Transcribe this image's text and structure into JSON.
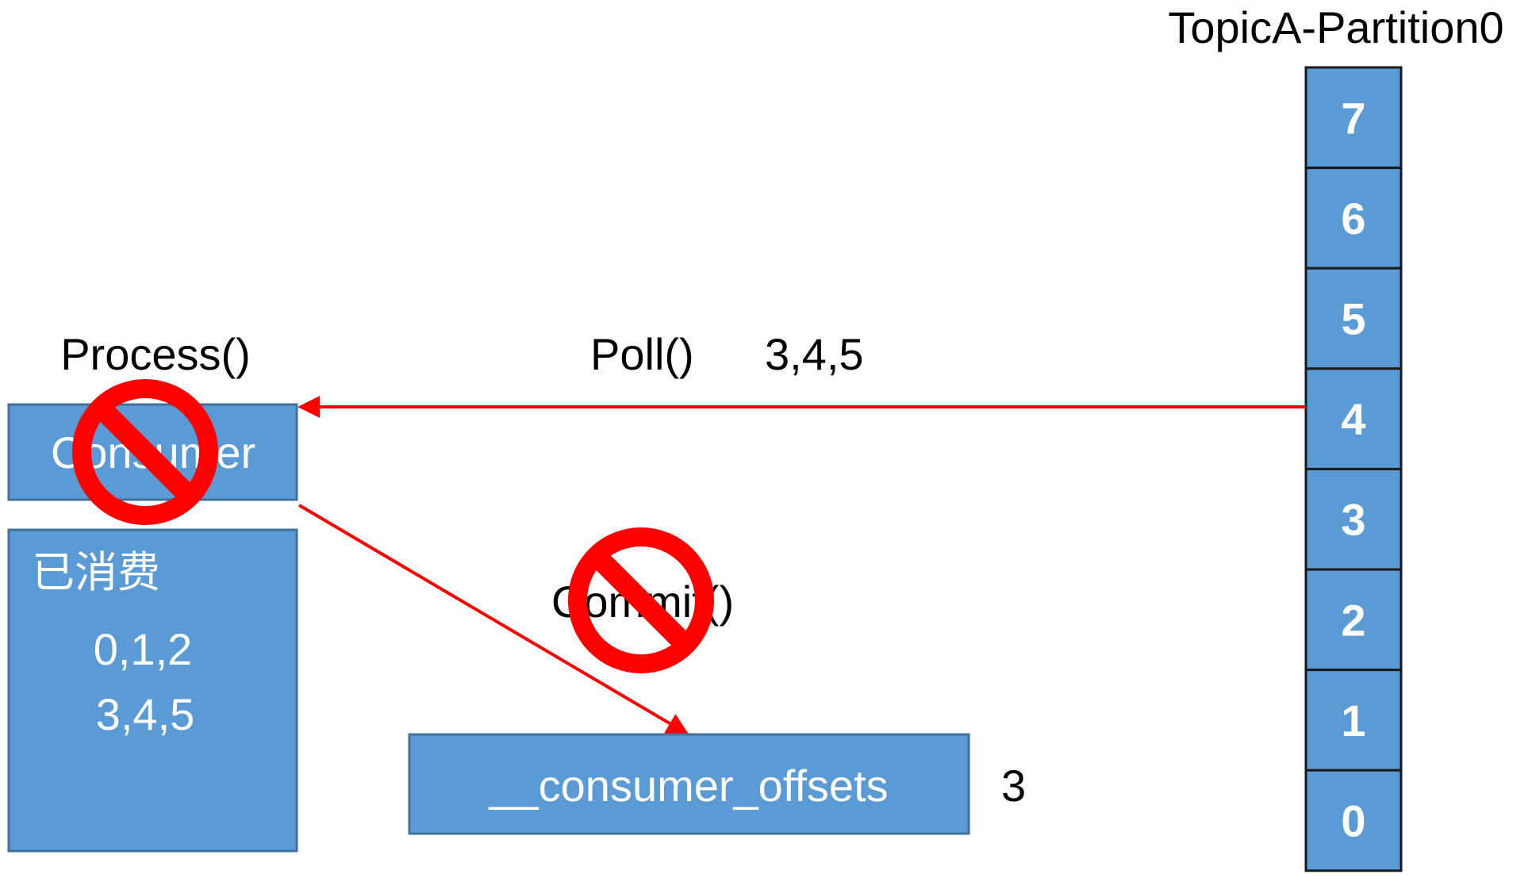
{
  "partition": {
    "title": "TopicA-Partition0",
    "cells": [
      "7",
      "6",
      "5",
      "4",
      "3",
      "2",
      "1",
      "0"
    ]
  },
  "consumer": {
    "process_label": "Process()",
    "box_label": "Consumer",
    "consumed_title": "已消费",
    "consumed_lines": [
      "0,1,2",
      "3,4,5"
    ]
  },
  "poll": {
    "label": "Poll()",
    "offsets": "3,4,5"
  },
  "commit": {
    "label": "Commit()"
  },
  "offsets_topic": {
    "label": "__consumer_offsets",
    "value": "3"
  },
  "colors": {
    "box_fill": "#5b9bd5",
    "box_stroke": "#41719c",
    "arrow": "#ff0000",
    "prohibited": "#ff0000"
  },
  "icons": {
    "prohibited": "prohibited-icon"
  }
}
